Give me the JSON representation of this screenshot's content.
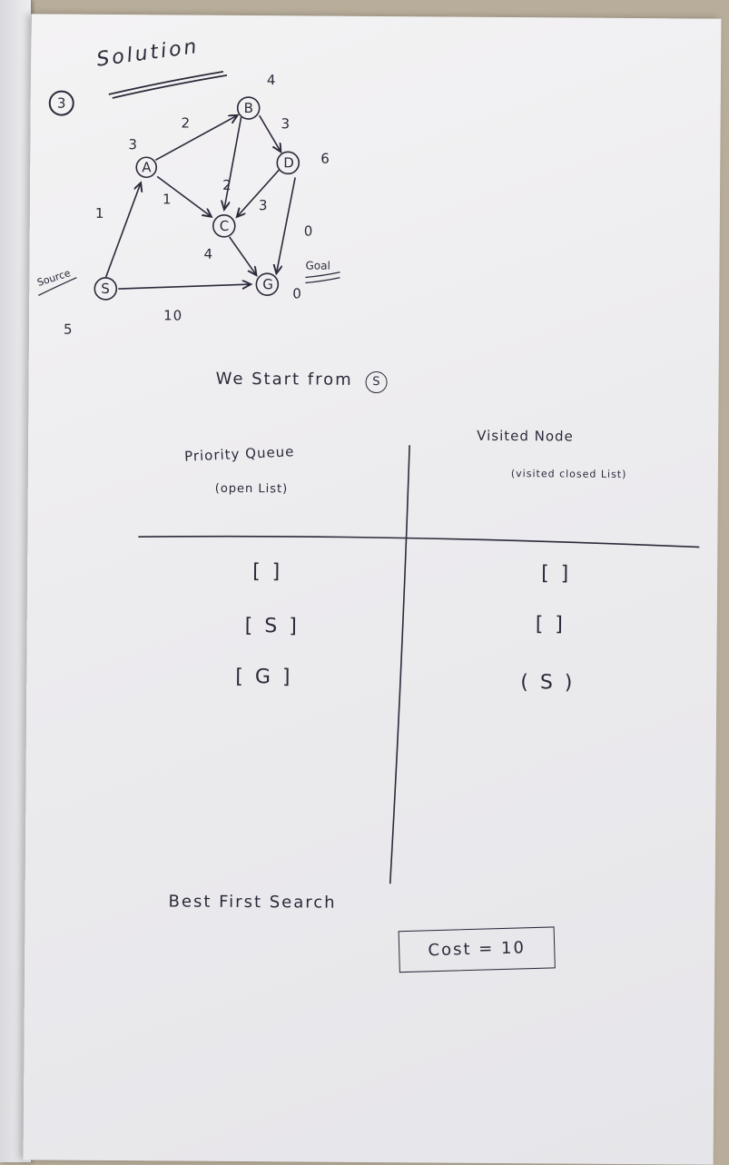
{
  "header": {
    "problem_number": "3",
    "title": "Solution"
  },
  "graph": {
    "source_label": "Source",
    "nodes": [
      {
        "id": "S",
        "label": "S",
        "heuristic": "5"
      },
      {
        "id": "A",
        "label": "A",
        "heuristic": "3"
      },
      {
        "id": "B",
        "label": "B",
        "heuristic": "4"
      },
      {
        "id": "C",
        "label": "C",
        "heuristic": "4"
      },
      {
        "id": "D",
        "label": "D",
        "heuristic": "6"
      },
      {
        "id": "G",
        "label": "G",
        "heuristic": "0"
      }
    ],
    "edges": [
      {
        "from": "S",
        "to": "A",
        "cost": "1"
      },
      {
        "from": "A",
        "to": "B",
        "cost": "2"
      },
      {
        "from": "A",
        "to": "C",
        "cost": "1"
      },
      {
        "from": "B",
        "to": "C",
        "cost": "2"
      },
      {
        "from": "B",
        "to": "D",
        "cost": "3"
      },
      {
        "from": "D",
        "to": "C",
        "cost": "3"
      },
      {
        "from": "C",
        "to": "G",
        "cost": ""
      },
      {
        "from": "D",
        "to": "G",
        "cost": "0"
      },
      {
        "from": "S",
        "to": "G",
        "cost": "10"
      }
    ],
    "goal_label": "Goal",
    "goal_h": "0"
  },
  "intro": "We Start from",
  "start_node": "S",
  "table": {
    "left_header": "Priority Queue",
    "left_sub": "(open List)",
    "right_header": "Visited Node",
    "right_sub": "(visited closed List)",
    "left_rows": [
      "[ ]",
      "[ S ]",
      "[ G ]"
    ],
    "right_rows": [
      "[ ]",
      "[ ]",
      "( S )"
    ]
  },
  "footer": {
    "method": "Best First Search",
    "cost": "Cost = 10"
  }
}
